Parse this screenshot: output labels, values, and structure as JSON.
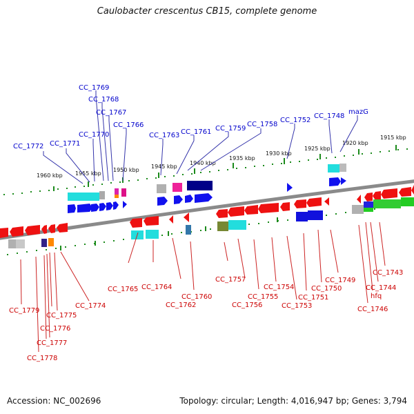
{
  "title": "Caulobacter crescentus CB15, complete genome",
  "footer": {
    "accession": "Accession: NC_002696",
    "summary": "Topology: circular; Length: 4,016,947 bp; Genes: 3,794"
  },
  "colors": {
    "forward_label": "#0000cc",
    "reverse_label": "#cc0000",
    "forward_gene": "#0000ee",
    "reverse_gene": "#ee0000",
    "tick": "#009900",
    "backbone": "#888888"
  },
  "scale_labels": [
    "1960 kbp",
    "1955 kbp",
    "1950 kbp",
    "1945 kbp",
    "1940 kbp",
    "1935 kbp",
    "1930 kbp",
    "1925 kbp",
    "1920 kbp",
    "1915 kbp"
  ],
  "forward_labels": [
    "CC_1769",
    "CC_1768",
    "CC_1767",
    "CC_1770",
    "CC_1766",
    "CC_1772",
    "CC_1771",
    "CC_1763",
    "CC_1761",
    "CC_1759",
    "CC_1758",
    "CC_1752",
    "CC_1748",
    "mazG"
  ],
  "reverse_labels": [
    "CC_1765",
    "CC_1764",
    "CC_1762",
    "CC_1760",
    "CC_1757",
    "CC_1756",
    "CC_1755",
    "CC_1754",
    "CC_1753",
    "CC_1751",
    "CC_1750",
    "CC_1749",
    "CC_1746",
    "hfq",
    "CC_1744",
    "CC_1743",
    "CC_1774",
    "CC_1775",
    "CC_1776",
    "CC_1777",
    "CC_1778",
    "CC_1779"
  ]
}
